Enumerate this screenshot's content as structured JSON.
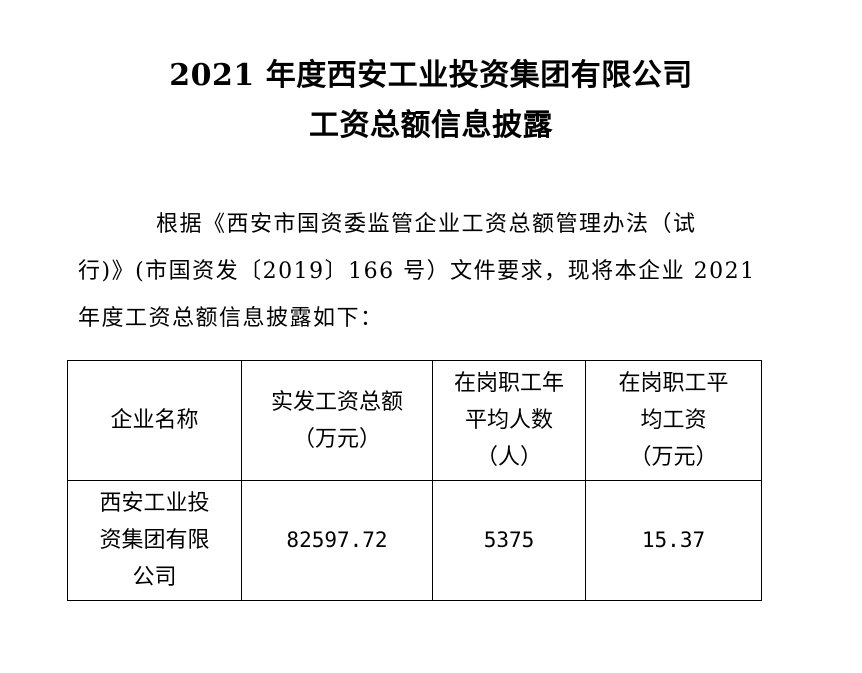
{
  "title": {
    "line1": "2021 年度西安工业投资集团有限公司",
    "line2": "工资总额信息披露"
  },
  "paragraph": {
    "line1": "根据《西安市国资委监管企业工资总额管理办法（试",
    "line2": "行)》(市国资发〔2019〕166 号）文件要求，现将本企业 2021",
    "line3": "年度工资总额信息披露如下："
  },
  "table": {
    "headers": [
      [
        "企业名称"
      ],
      [
        "实发工资总额",
        "（万元）"
      ],
      [
        "在岗职工年",
        "平均人数",
        "（人）"
      ],
      [
        "在岗职工平",
        "均工资",
        "（万元）"
      ]
    ],
    "row": {
      "company": [
        "西安工业投",
        "资集团有限",
        "公司"
      ],
      "total_wages": "82597.72",
      "avg_headcount": "5375",
      "avg_wage": "15.37"
    }
  }
}
